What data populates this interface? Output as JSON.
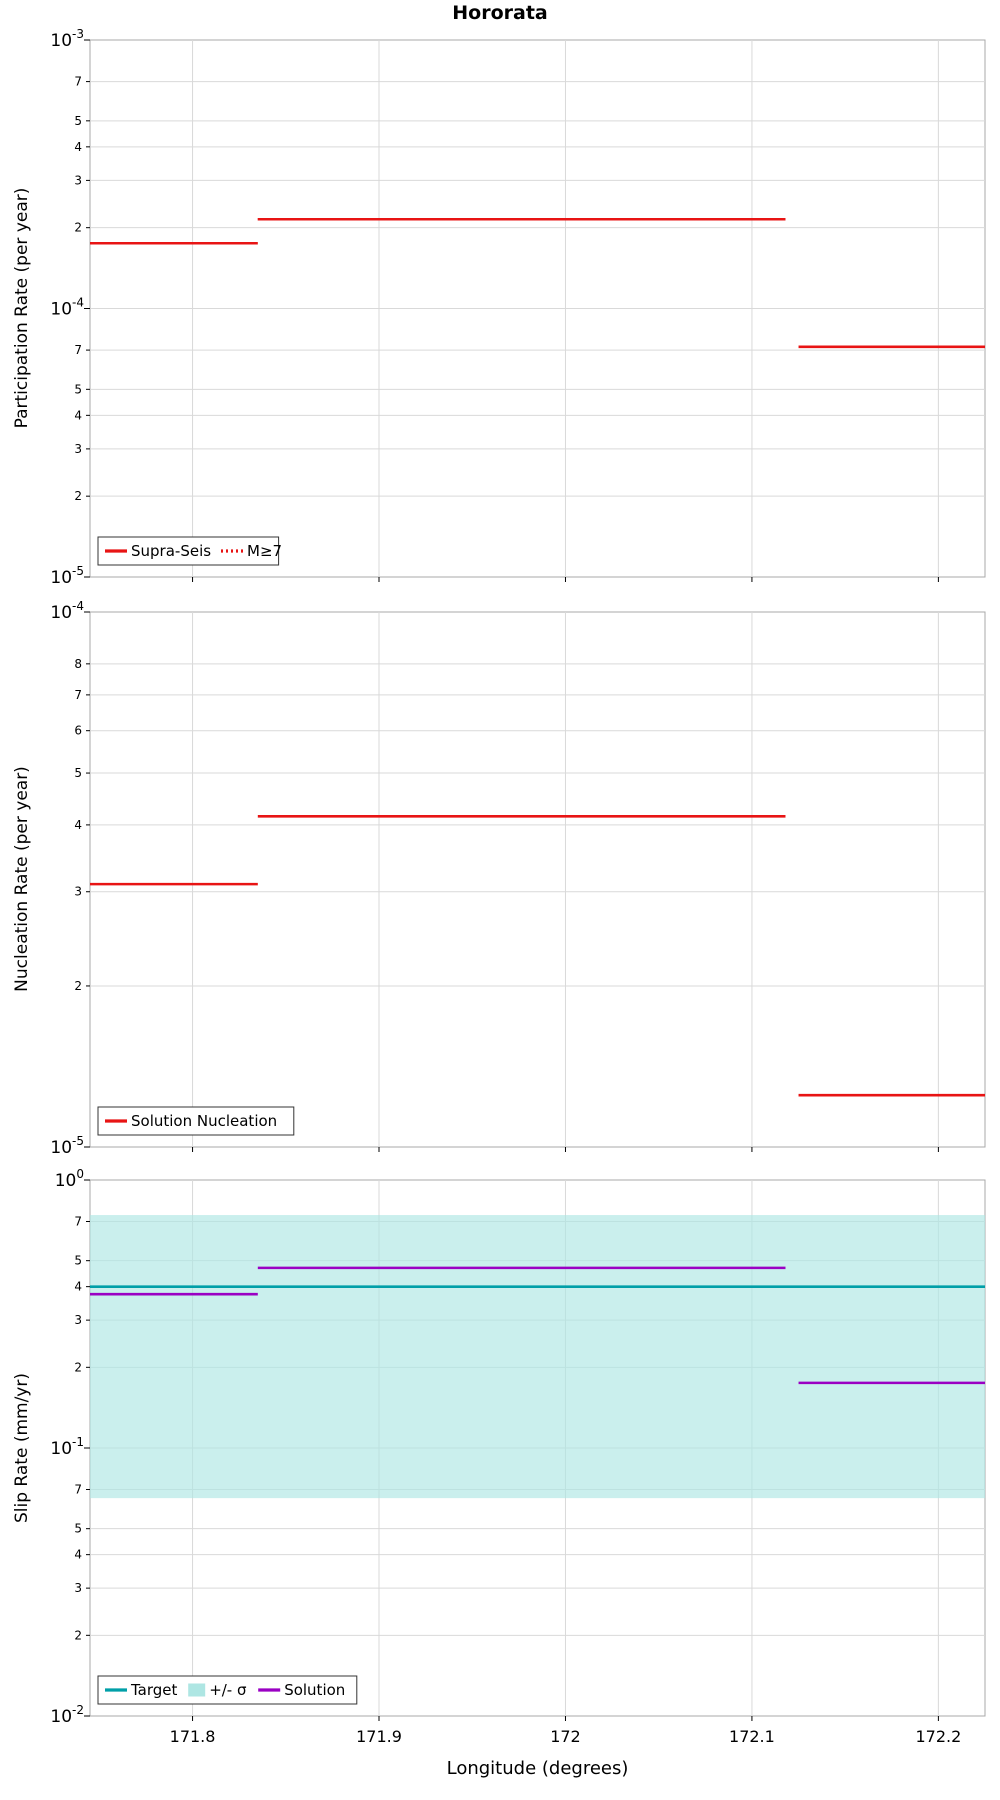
{
  "title": "Hororata",
  "xlabel": "Longitude (degrees)",
  "x_axis": {
    "lim": [
      171.745,
      172.225
    ],
    "ticks": [
      171.8,
      171.9,
      172.0,
      172.1,
      172.2
    ],
    "tick_labels": [
      "171.8",
      "171.9",
      "172",
      "172.1",
      "172.2"
    ]
  },
  "colors": {
    "red": "#e81414",
    "teal": "#009fa8",
    "purple": "#9a00c3",
    "band": "#aee6e3",
    "grid": "#d9d9d9",
    "frame": "#a8a8a8"
  },
  "chart_data": [
    {
      "type": "line",
      "panel": "participation-rate",
      "ylabel": "Participation Rate (per year)",
      "ylim": [
        1e-05,
        0.001
      ],
      "yscale": "log",
      "decades": [
        -3,
        -4,
        -5
      ],
      "minor_labels": [
        7,
        5,
        4,
        3,
        2
      ],
      "grid": true,
      "legend_position": "bottom-left",
      "series": [
        {
          "name": "Supra-Seis",
          "color": "red",
          "style": "solid",
          "segments": [
            [
              171.745,
              171.835,
              0.000175
            ],
            [
              171.835,
              172.118,
              0.000215
            ],
            [
              172.125,
              172.225,
              7.2e-05
            ]
          ]
        },
        {
          "name": "M≥7",
          "color": "red",
          "style": "dotted",
          "segments": [
            [
              171.745,
              171.835,
              0.000175
            ],
            [
              171.835,
              172.115,
              0.000215
            ]
          ]
        }
      ],
      "legend": [
        {
          "label": "Supra-Seis",
          "swatch": "line",
          "color": "red",
          "style": "solid"
        },
        {
          "label": "M≥7",
          "swatch": "line",
          "color": "red",
          "style": "dotted"
        }
      ]
    },
    {
      "type": "line",
      "panel": "nucleation-rate",
      "ylabel": "Nucleation Rate (per year)",
      "ylim": [
        1e-05,
        0.0001
      ],
      "yscale": "log",
      "decades": [
        -4,
        -5
      ],
      "minor_labels": [
        8,
        7,
        6,
        5,
        4,
        3,
        2
      ],
      "grid": true,
      "legend_position": "bottom-left",
      "series": [
        {
          "name": "Solution Nucleation",
          "color": "red",
          "style": "solid",
          "segments": [
            [
              171.745,
              171.835,
              3.1e-05
            ],
            [
              171.835,
              172.118,
              4.15e-05
            ],
            [
              172.125,
              172.225,
              1.25e-05
            ]
          ]
        }
      ],
      "legend": [
        {
          "label": "Solution Nucleation",
          "swatch": "line",
          "color": "red",
          "style": "solid"
        }
      ]
    },
    {
      "type": "line",
      "panel": "slip-rate",
      "ylabel": "Slip Rate (mm/yr)",
      "ylim": [
        0.01,
        1
      ],
      "yscale": "log",
      "decades": [
        0,
        -1,
        -2
      ],
      "minor_labels": [
        7,
        5,
        4,
        3,
        2
      ],
      "grid": true,
      "legend_position": "bottom-left",
      "band": {
        "name": "+/- σ",
        "low": 0.065,
        "high": 0.74,
        "color": "band"
      },
      "series": [
        {
          "name": "Target",
          "color": "teal",
          "style": "solid",
          "segments": [
            [
              171.745,
              172.225,
              0.4
            ]
          ]
        },
        {
          "name": "Solution",
          "color": "purple",
          "style": "solid",
          "segments": [
            [
              171.745,
              171.835,
              0.375
            ],
            [
              171.835,
              172.118,
              0.47
            ],
            [
              172.125,
              172.225,
              0.175
            ]
          ]
        }
      ],
      "legend": [
        {
          "label": "Target",
          "swatch": "line",
          "color": "teal",
          "style": "solid"
        },
        {
          "label": "+/- σ",
          "swatch": "patch",
          "color": "band"
        },
        {
          "label": "Solution",
          "swatch": "line",
          "color": "purple",
          "style": "solid"
        }
      ]
    }
  ]
}
